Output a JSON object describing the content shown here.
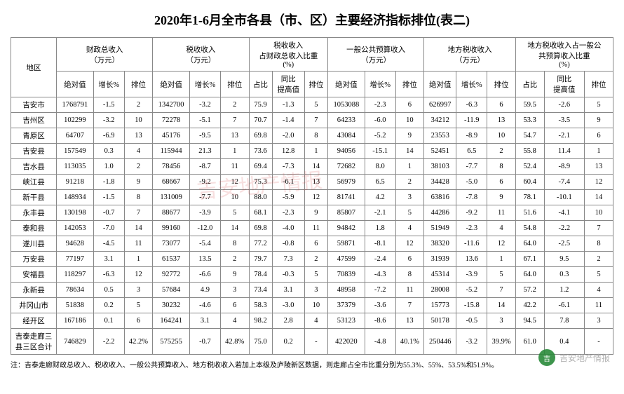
{
  "title": "2020年1-6月全市各县（市、区）主要经济指标排位(表二)",
  "header": {
    "region": "地区",
    "groups": [
      {
        "name": "财政总收入\n（万元）",
        "sub": [
          "绝对值",
          "增长%",
          "排位"
        ]
      },
      {
        "name": "税收收入\n（万元）",
        "sub": [
          "绝对值",
          "增长%",
          "排位"
        ]
      },
      {
        "name": "税收收入\n占财政总收入比重\n(%)",
        "sub": [
          "占比",
          "同比\n提高值",
          "排位"
        ]
      },
      {
        "name": "一般公共预算收入\n（万元）",
        "sub": [
          "绝对值",
          "增长%",
          "排位"
        ]
      },
      {
        "name": "地方税收收入\n（万元）",
        "sub": [
          "绝对值",
          "增长%",
          "排位"
        ]
      },
      {
        "name": "地方税收收入占一般公\n共预算收入比重\n(%)",
        "sub": [
          "占比",
          "同比\n提高值",
          "排位"
        ]
      }
    ]
  },
  "rows": [
    {
      "r": "吉安市",
      "v": [
        "1768791",
        "-1.5",
        "2",
        "1342700",
        "-3.2",
        "2",
        "75.9",
        "-1.3",
        "5",
        "1053088",
        "-2.3",
        "6",
        "626997",
        "-6.3",
        "6",
        "59.5",
        "-2.6",
        "5"
      ]
    },
    {
      "r": "吉州区",
      "v": [
        "102299",
        "-3.2",
        "10",
        "72278",
        "-5.1",
        "7",
        "70.7",
        "-1.4",
        "7",
        "64233",
        "-6.0",
        "10",
        "34212",
        "-11.9",
        "13",
        "53.3",
        "-3.5",
        "9"
      ]
    },
    {
      "r": "青原区",
      "v": [
        "64707",
        "-6.9",
        "13",
        "45176",
        "-9.5",
        "13",
        "69.8",
        "-2.0",
        "8",
        "43084",
        "-5.2",
        "9",
        "23553",
        "-8.9",
        "10",
        "54.7",
        "-2.1",
        "6"
      ]
    },
    {
      "r": "吉安县",
      "v": [
        "157549",
        "0.3",
        "4",
        "115944",
        "21.3",
        "1",
        "73.6",
        "12.8",
        "1",
        "94056",
        "-15.1",
        "14",
        "52451",
        "6.5",
        "2",
        "55.8",
        "11.4",
        "1"
      ]
    },
    {
      "r": "吉水县",
      "v": [
        "113035",
        "1.0",
        "2",
        "78456",
        "-8.7",
        "11",
        "69.4",
        "-7.3",
        "14",
        "72682",
        "8.0",
        "1",
        "38103",
        "-7.7",
        "8",
        "52.4",
        "-8.9",
        "13"
      ]
    },
    {
      "r": "峡江县",
      "v": [
        "91218",
        "-1.8",
        "9",
        "68667",
        "-9.2",
        "12",
        "75.3",
        "-6.1",
        "13",
        "56979",
        "6.5",
        "2",
        "34428",
        "-5.0",
        "6",
        "60.4",
        "-7.4",
        "12"
      ]
    },
    {
      "r": "新干县",
      "v": [
        "148934",
        "-1.5",
        "8",
        "131009",
        "-7.7",
        "10",
        "88.0",
        "-5.9",
        "12",
        "81741",
        "4.2",
        "3",
        "63816",
        "-7.8",
        "9",
        "78.1",
        "-10.1",
        "14"
      ]
    },
    {
      "r": "永丰县",
      "v": [
        "130198",
        "-0.7",
        "7",
        "88677",
        "-3.9",
        "5",
        "68.1",
        "-2.3",
        "9",
        "85807",
        "-2.1",
        "5",
        "44286",
        "-9.2",
        "11",
        "51.6",
        "-4.1",
        "10"
      ]
    },
    {
      "r": "泰和县",
      "v": [
        "142053",
        "-7.0",
        "14",
        "99160",
        "-12.0",
        "14",
        "69.8",
        "-4.0",
        "11",
        "94842",
        "1.8",
        "4",
        "51949",
        "-2.3",
        "4",
        "54.8",
        "-2.2",
        "7"
      ]
    },
    {
      "r": "遂川县",
      "v": [
        "94628",
        "-4.5",
        "11",
        "73077",
        "-5.4",
        "8",
        "77.2",
        "-0.8",
        "6",
        "59871",
        "-8.1",
        "12",
        "38320",
        "-11.6",
        "12",
        "64.0",
        "-2.5",
        "8"
      ]
    },
    {
      "r": "万安县",
      "v": [
        "77197",
        "3.1",
        "1",
        "61537",
        "13.5",
        "2",
        "79.7",
        "7.3",
        "2",
        "47599",
        "-2.4",
        "6",
        "31939",
        "13.6",
        "1",
        "67.1",
        "9.5",
        "2"
      ]
    },
    {
      "r": "安福县",
      "v": [
        "118297",
        "-6.3",
        "12",
        "92772",
        "-6.6",
        "9",
        "78.4",
        "-0.3",
        "5",
        "70839",
        "-4.3",
        "8",
        "45314",
        "-3.9",
        "5",
        "64.0",
        "0.3",
        "5"
      ]
    },
    {
      "r": "永新县",
      "v": [
        "78634",
        "0.5",
        "3",
        "57684",
        "4.9",
        "3",
        "73.4",
        "3.1",
        "3",
        "48958",
        "-7.2",
        "11",
        "28008",
        "-5.2",
        "7",
        "57.2",
        "1.2",
        "4"
      ]
    },
    {
      "r": "井冈山市",
      "v": [
        "51838",
        "0.2",
        "5",
        "30232",
        "-4.6",
        "6",
        "58.3",
        "-3.0",
        "10",
        "37379",
        "-3.6",
        "7",
        "15773",
        "-15.8",
        "14",
        "42.2",
        "-6.1",
        "11"
      ]
    },
    {
      "r": "经开区",
      "v": [
        "167186",
        "0.1",
        "6",
        "164241",
        "3.1",
        "4",
        "98.2",
        "2.8",
        "4",
        "53123",
        "-8.6",
        "13",
        "50178",
        "-0.5",
        "3",
        "94.5",
        "7.8",
        "3"
      ]
    },
    {
      "r": "吉泰走廊三\n县三区合计",
      "v": [
        "746829",
        "-2.2",
        "42.2%",
        "575255",
        "-0.7",
        "42.8%",
        "75.0",
        "0.2",
        "-",
        "422020",
        "-4.8",
        "40.1%",
        "250446",
        "-3.2",
        "39.9%",
        "61.0",
        "0.4",
        "-"
      ]
    }
  ],
  "footnote": "注：吉泰走廊财政总收入、税收收入、一般公共预算收入、地方税收收入若加上本级及庐陵新区数据，则走廊占全市比重分别为55.3%、55%、53.5%和51.9%。",
  "watermark": {
    "icon": "吉",
    "text": "吉安地产情报"
  },
  "colors": {
    "border": "#888888",
    "text": "#000000",
    "bg": "#ffffff"
  }
}
